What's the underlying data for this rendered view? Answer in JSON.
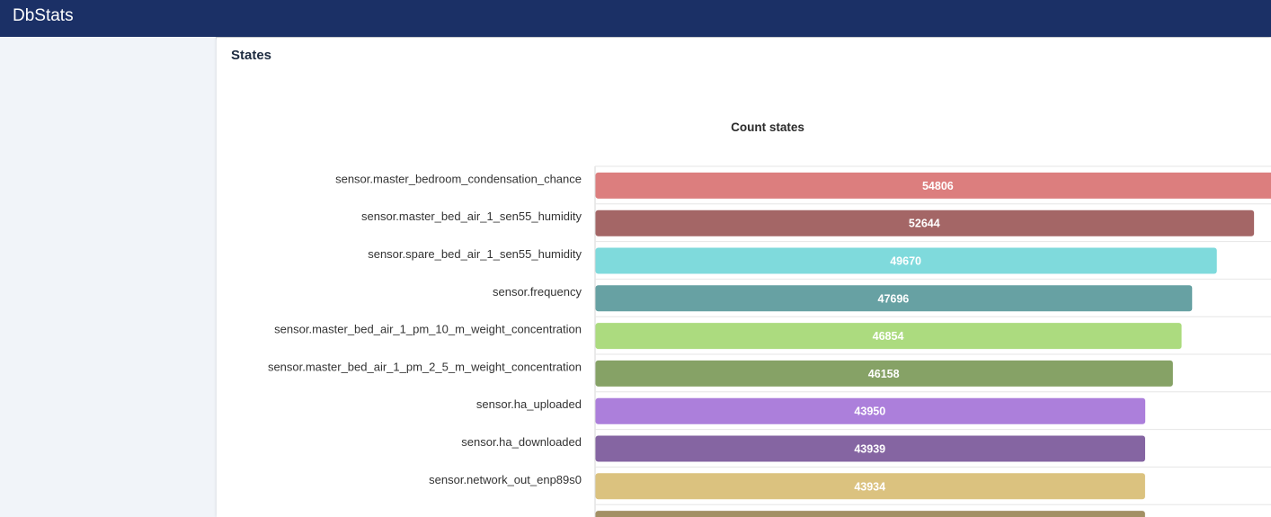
{
  "app": {
    "title": "DbStats"
  },
  "section": {
    "title": "States"
  },
  "chart_data": {
    "type": "bar",
    "orientation": "horizontal",
    "title": "Count states",
    "categories": [
      "sensor.master_bedroom_condensation_chance",
      "sensor.master_bed_air_1_sen55_humidity",
      "sensor.spare_bed_air_1_sen55_humidity",
      "sensor.frequency",
      "sensor.master_bed_air_1_pm_10_m_weight_concentration",
      "sensor.master_bed_air_1_pm_2_5_m_weight_concentration",
      "sensor.ha_uploaded",
      "sensor.ha_downloaded",
      "sensor.network_out_enp89s0",
      ""
    ],
    "values": [
      54806,
      52644,
      49670,
      47696,
      46854,
      46158,
      43950,
      43939,
      43934,
      43930
    ],
    "colors": [
      "#dc7e7e",
      "#a46666",
      "#7fdadc",
      "#67a1a3",
      "#acdb7f",
      "#86a266",
      "#ac7fdb",
      "#8565a2",
      "#dbc27f",
      "#a39064"
    ],
    "value_labels_visible": [
      true,
      true,
      true,
      true,
      true,
      true,
      true,
      true,
      true,
      false
    ],
    "xlim": [
      0,
      60000
    ],
    "grid": true,
    "legend": "none",
    "data_labels": "inside-center"
  }
}
